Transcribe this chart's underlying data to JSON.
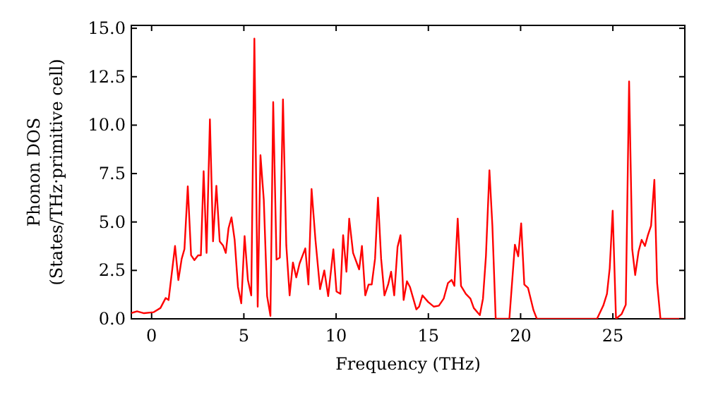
{
  "chart_data": {
    "type": "line",
    "xlabel": "Frequency (THz)",
    "ylabel": "Phonon DOS\n(States/THz·primitive cell)",
    "xlim": [
      -1.1,
      28.9
    ],
    "ylim": [
      0,
      15.15
    ],
    "xticks": [
      0,
      5,
      10,
      15,
      20,
      25
    ],
    "yticks": [
      {
        "value": 0,
        "label": "0.0"
      },
      {
        "value": 2.5,
        "label": "2.5"
      },
      {
        "value": 5,
        "label": "5.0"
      },
      {
        "value": 7.5,
        "label": "7.5"
      },
      {
        "value": 10,
        "label": "10.0"
      },
      {
        "value": 12.5,
        "label": "12.5"
      },
      {
        "value": 15,
        "label": "15.0"
      }
    ],
    "grid": false,
    "marker": "none",
    "line_style": "solid",
    "series": [
      {
        "color": "#ff0000",
        "x": [
          -1.1,
          -0.79,
          -0.41,
          0.1,
          0.48,
          0.76,
          0.92,
          1.27,
          1.45,
          1.63,
          1.78,
          1.96,
          2.14,
          2.32,
          2.52,
          2.67,
          2.82,
          2.98,
          3.16,
          3.33,
          3.51,
          3.69,
          3.87,
          4.02,
          4.17,
          4.33,
          4.5,
          4.68,
          4.86,
          5.04,
          5.22,
          5.4,
          5.57,
          5.75,
          5.9,
          6.08,
          6.26,
          6.44,
          6.59,
          6.77,
          6.95,
          7.12,
          7.3,
          7.48,
          7.66,
          7.84,
          8.02,
          8.33,
          8.5,
          8.67,
          8.88,
          9.13,
          9.36,
          9.57,
          9.85,
          10.02,
          10.23,
          10.38,
          10.56,
          10.71,
          10.92,
          11.25,
          11.4,
          11.58,
          11.76,
          11.93,
          12.11,
          12.27,
          12.44,
          12.62,
          12.82,
          12.98,
          13.15,
          13.33,
          13.49,
          13.66,
          13.84,
          14.0,
          14.35,
          14.5,
          14.68,
          14.99,
          15.29,
          15.57,
          15.83,
          16.06,
          16.26,
          16.41,
          16.59,
          16.77,
          17.03,
          17.28,
          17.46,
          17.79,
          17.96,
          18.12,
          18.31,
          18.47,
          18.65,
          19.39,
          19.69,
          19.87,
          20.03,
          20.2,
          20.4,
          20.7,
          20.88,
          24.14,
          24.48,
          24.68,
          24.83,
          24.99,
          25.17,
          25.47,
          25.7,
          25.88,
          26.05,
          26.21,
          26.39,
          26.56,
          26.74,
          26.9,
          27.07,
          27.25,
          27.4,
          27.58,
          28.85
        ],
        "values": [
          0.3,
          0.39,
          0.29,
          0.34,
          0.56,
          1.07,
          0.97,
          3.76,
          2.0,
          3.1,
          3.6,
          6.84,
          3.28,
          3.03,
          3.28,
          3.28,
          7.62,
          3.4,
          10.3,
          4.0,
          6.87,
          4.0,
          3.79,
          3.4,
          4.68,
          5.24,
          4.08,
          1.65,
          0.8,
          4.27,
          2.0,
          1.21,
          14.47,
          0.63,
          8.45,
          6.14,
          1.17,
          0.15,
          11.19,
          3.06,
          3.16,
          11.33,
          3.79,
          1.21,
          2.91,
          2.14,
          2.86,
          3.64,
          1.77,
          6.7,
          4.08,
          1.53,
          2.5,
          1.17,
          3.59,
          1.41,
          1.29,
          4.32,
          2.43,
          5.17,
          3.4,
          2.55,
          3.76,
          1.21,
          1.77,
          1.77,
          3.1,
          6.26,
          3.1,
          1.21,
          1.77,
          2.43,
          1.21,
          3.71,
          4.32,
          0.97,
          1.94,
          1.65,
          0.49,
          0.63,
          1.21,
          0.87,
          0.63,
          0.68,
          1.04,
          1.84,
          2.01,
          1.7,
          5.17,
          1.7,
          1.29,
          1.04,
          0.56,
          0.19,
          1.04,
          3.23,
          7.67,
          4.8,
          0,
          0,
          3.83,
          3.23,
          4.93,
          1.77,
          1.6,
          0.44,
          0,
          0,
          0.68,
          1.29,
          2.62,
          5.58,
          0,
          0.24,
          0.73,
          12.26,
          3.59,
          2.26,
          3.47,
          4.08,
          3.76,
          4.32,
          4.8,
          7.18,
          1.84,
          0,
          0
        ]
      }
    ]
  }
}
